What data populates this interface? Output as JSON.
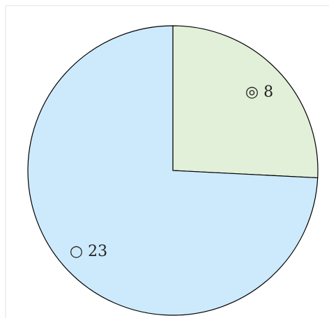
{
  "chart_data": {
    "type": "pie",
    "title": "",
    "slices": [
      {
        "label": "◎ 8",
        "value": 8,
        "color": "#e2efd9"
      },
      {
        "label": "○ 23",
        "value": 23,
        "color": "#cdeafd"
      }
    ],
    "start_angle_deg": 0,
    "direction": "clockwise",
    "legend": "none"
  }
}
